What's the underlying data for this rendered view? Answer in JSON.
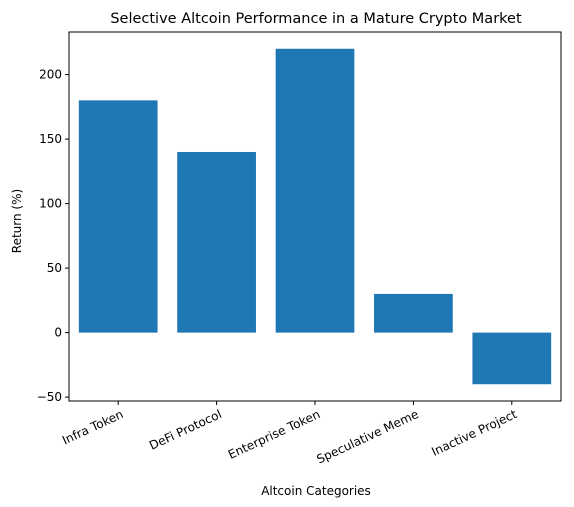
{
  "chart_data": {
    "type": "bar",
    "title": "Selective Altcoin Performance in a Mature Crypto Market",
    "xlabel": "Altcoin Categories",
    "ylabel": "Return (%)",
    "categories": [
      "Infra Token",
      "DeFi Protocol",
      "Enterprise Token",
      "Speculative Meme",
      "Inactive Project"
    ],
    "values": [
      180,
      140,
      220,
      30,
      -40
    ],
    "ylim": [
      -53,
      233
    ],
    "yticks": [
      -50,
      0,
      50,
      100,
      150,
      200
    ],
    "bar_color": "#1f77b4",
    "grid": false,
    "legend": "none"
  }
}
